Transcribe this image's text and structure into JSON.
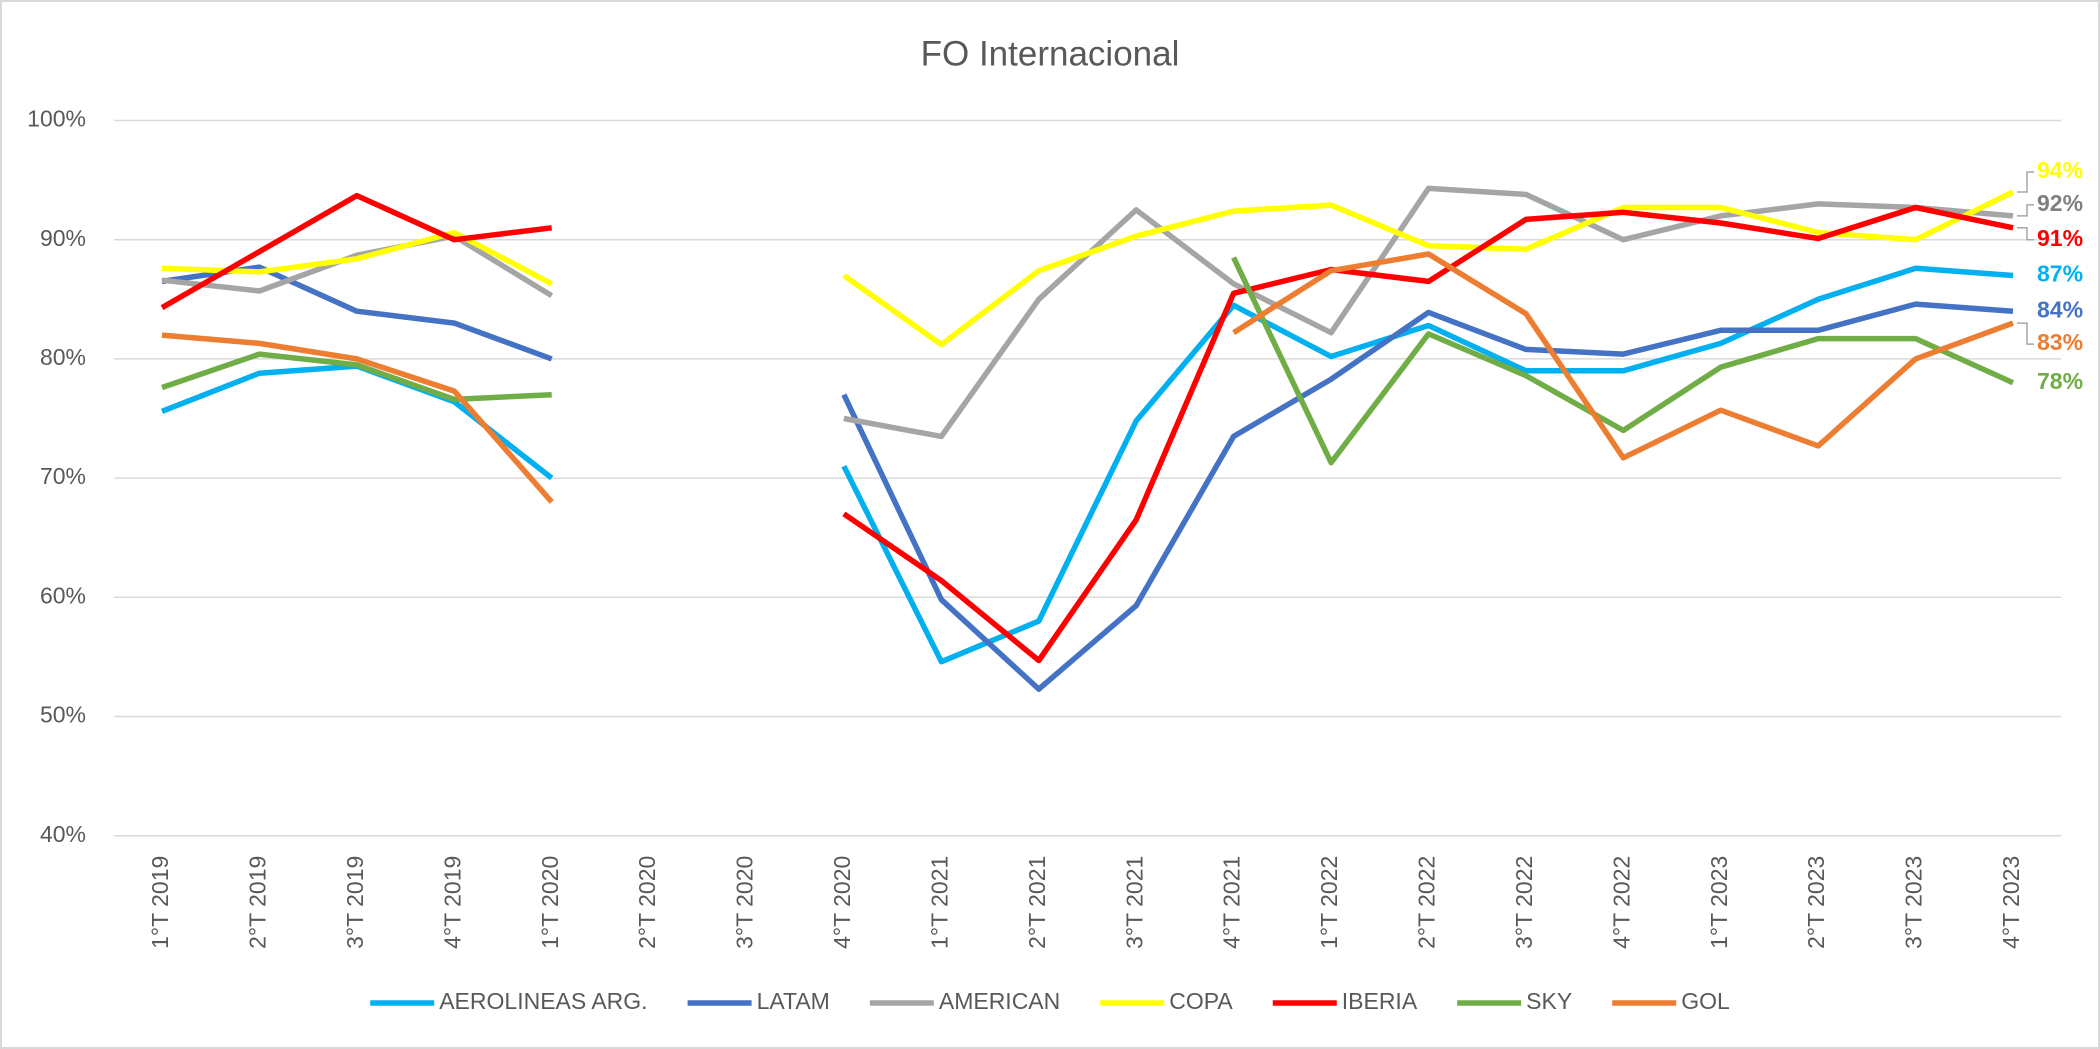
{
  "chart_data": {
    "type": "line",
    "title": "FO Internacional",
    "categories": [
      "1°T 2019",
      "2°T 2019",
      "3°T 2019",
      "4°T 2019",
      "1°T 2020",
      "2°T 2020",
      "3°T 2020",
      "4°T 2020",
      "1°T 2021",
      "2°T 2021",
      "3°T 2021",
      "4°T 2021",
      "1°T 2022",
      "2°T 2022",
      "3°T 2022",
      "4°T 2022",
      "1°T 2023",
      "2°T 2023",
      "3°T 2023",
      "4°T 2023"
    ],
    "ylim": [
      40,
      100
    ],
    "yticks": [
      {
        "value": 40,
        "label": "40%"
      },
      {
        "value": 50,
        "label": "50%"
      },
      {
        "value": 60,
        "label": "60%"
      },
      {
        "value": 70,
        "label": "70%"
      },
      {
        "value": 80,
        "label": "80%"
      },
      {
        "value": 90,
        "label": "90%"
      },
      {
        "value": 100,
        "label": "100%"
      }
    ],
    "grid": true,
    "legend": "bottom",
    "series": [
      {
        "name": "AEROLINEAS ARG.",
        "color": "#00b0f0",
        "values": [
          75.6,
          78.8,
          79.4,
          76.4,
          70,
          null,
          null,
          71,
          54.6,
          58,
          74.8,
          84.5,
          80.2,
          82.8,
          79,
          79,
          81.3,
          85,
          87.6,
          87
        ],
        "value_labels": [
          null,
          null,
          null,
          null,
          null,
          null,
          null,
          null,
          null,
          null,
          null,
          null,
          null,
          null,
          null,
          null,
          null,
          null,
          null,
          "87%"
        ]
      },
      {
        "name": "LATAM",
        "color": "#4472c4",
        "values": [
          86.5,
          87.7,
          84,
          83,
          80,
          null,
          null,
          77,
          59.8,
          52.3,
          59.3,
          73.5,
          78.3,
          83.9,
          80.8,
          80.4,
          82.4,
          82.4,
          84.6,
          84
        ],
        "value_labels": [
          null,
          null,
          null,
          null,
          null,
          null,
          null,
          null,
          null,
          null,
          null,
          null,
          null,
          null,
          null,
          null,
          null,
          null,
          null,
          "84%"
        ]
      },
      {
        "name": "AMERICAN",
        "color": "#a5a5a5",
        "values": [
          86.6,
          85.7,
          88.7,
          90.3,
          85.3,
          null,
          null,
          75,
          73.5,
          85,
          92.5,
          86.3,
          82.2,
          94.3,
          93.8,
          90,
          92,
          93,
          92.7,
          92
        ],
        "value_labels": [
          null,
          null,
          null,
          null,
          null,
          null,
          null,
          null,
          null,
          null,
          null,
          null,
          null,
          null,
          null,
          null,
          null,
          null,
          null,
          "92%"
        ]
      },
      {
        "name": "COPA",
        "color": "#ffff00",
        "values": [
          87.6,
          87.3,
          88.4,
          90.6,
          86.3,
          null,
          null,
          87,
          81.2,
          87.4,
          90.3,
          92.4,
          92.9,
          89.5,
          89.2,
          92.7,
          92.7,
          90.6,
          90,
          94
        ],
        "value_labels": [
          null,
          null,
          null,
          null,
          null,
          null,
          null,
          null,
          null,
          null,
          null,
          null,
          null,
          null,
          null,
          null,
          null,
          null,
          null,
          "94%"
        ]
      },
      {
        "name": "IBERIA",
        "color": "#ff0000",
        "values": [
          84.3,
          89,
          93.7,
          90,
          91,
          null,
          null,
          67,
          61.4,
          54.7,
          66.5,
          85.5,
          87.5,
          86.5,
          91.7,
          92.3,
          91.4,
          90.1,
          92.7,
          91
        ],
        "value_labels": [
          null,
          null,
          null,
          null,
          null,
          null,
          null,
          null,
          null,
          null,
          null,
          null,
          null,
          null,
          null,
          null,
          null,
          null,
          null,
          "91%"
        ]
      },
      {
        "name": "SKY",
        "color": "#70ad47",
        "values": [
          77.6,
          80.4,
          79.5,
          76.6,
          77,
          null,
          null,
          null,
          null,
          null,
          null,
          88.5,
          71.3,
          82.1,
          78.6,
          74,
          79.3,
          81.7,
          81.7,
          78
        ],
        "value_labels": [
          null,
          null,
          null,
          null,
          null,
          null,
          null,
          null,
          null,
          null,
          null,
          null,
          null,
          null,
          null,
          null,
          null,
          null,
          null,
          "78%"
        ]
      },
      {
        "name": "GOL",
        "color": "#ed7d31",
        "values": [
          82,
          81.3,
          80,
          77.3,
          68,
          null,
          null,
          null,
          null,
          null,
          null,
          82.2,
          87.4,
          88.8,
          83.8,
          71.7,
          75.7,
          72.7,
          80,
          83
        ],
        "value_labels": [
          null,
          null,
          null,
          null,
          null,
          null,
          null,
          null,
          null,
          null,
          null,
          null,
          null,
          null,
          null,
          null,
          null,
          null,
          null,
          "83%"
        ]
      }
    ]
  }
}
